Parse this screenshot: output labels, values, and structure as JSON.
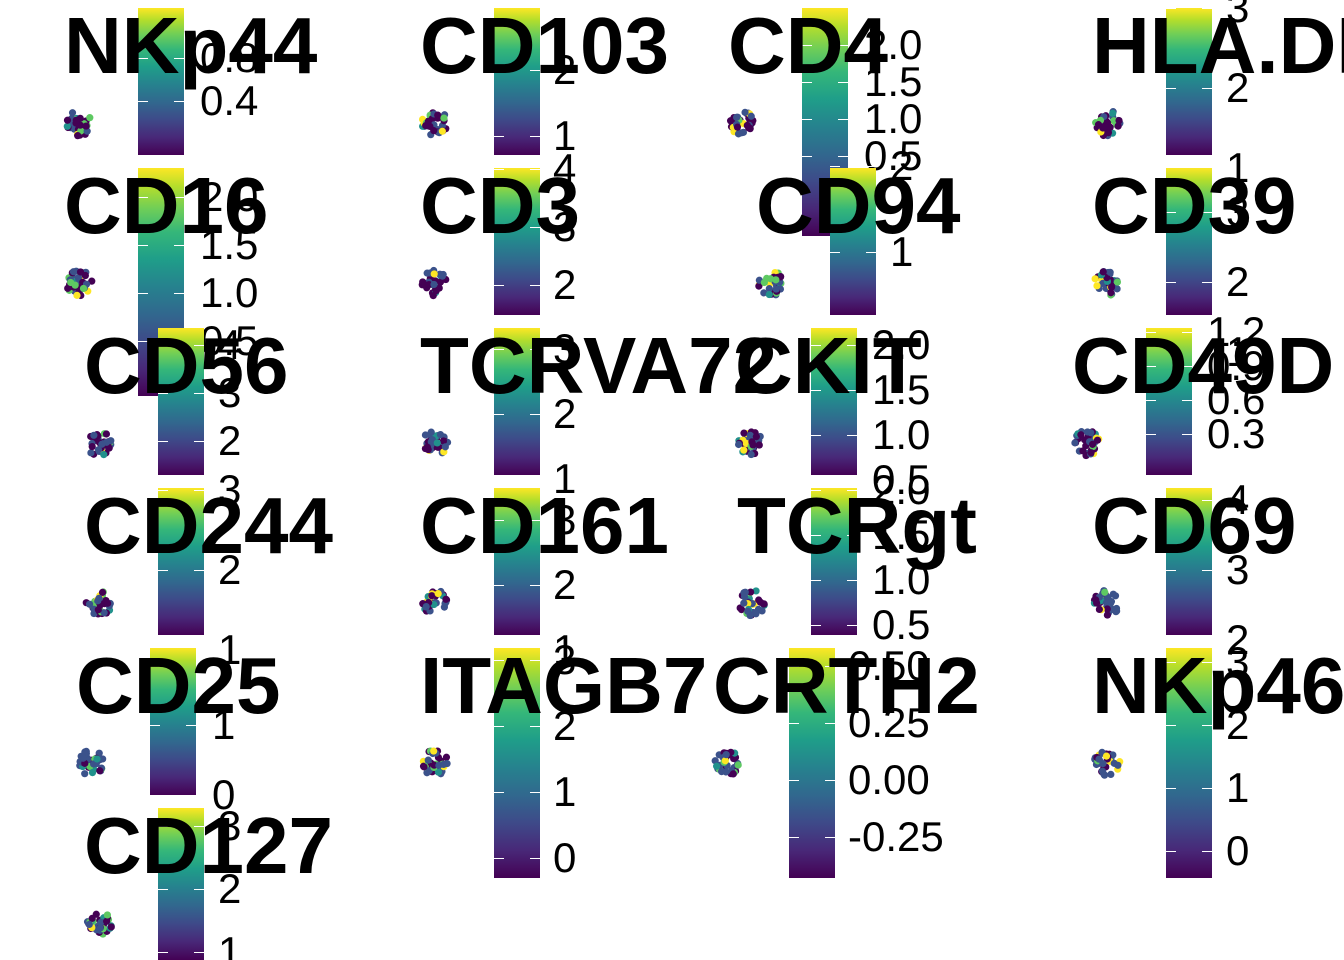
{
  "colors": {
    "viridis": [
      "#440154",
      "#3b528b",
      "#21918c",
      "#5ec962",
      "#fde725"
    ]
  },
  "chart_data": [
    {
      "type": "scatter",
      "title": "NKp44",
      "colorbar_ticks": [
        "0.8",
        "0.4"
      ]
    },
    {
      "type": "scatter",
      "title": "CD103",
      "colorbar_ticks": [
        "2",
        "1"
      ]
    },
    {
      "type": "scatter",
      "title": "CD4",
      "colorbar_ticks": [
        "2.0",
        "1.5",
        "1.0",
        "0.5"
      ]
    },
    {
      "type": "scatter",
      "title": "HLA.DR",
      "colorbar_ticks": [
        "3",
        "2",
        "1"
      ]
    },
    {
      "type": "scatter",
      "title": "CD16",
      "colorbar_ticks": [
        "2.0",
        "1.5",
        "1.0",
        "0.5"
      ]
    },
    {
      "type": "scatter",
      "title": "CD3",
      "colorbar_ticks": [
        "4",
        "3",
        "2"
      ]
    },
    {
      "type": "scatter",
      "title": "CD94",
      "colorbar_ticks": [
        "2",
        "1"
      ]
    },
    {
      "type": "scatter",
      "title": "CD39",
      "colorbar_ticks": [
        "3",
        "2",
        "1"
      ]
    },
    {
      "type": "scatter",
      "title": "CD56",
      "colorbar_ticks": [
        "4",
        "3",
        "2"
      ]
    },
    {
      "type": "scatter",
      "title": "TCRVA72",
      "colorbar_ticks": [
        "3",
        "2",
        "1"
      ]
    },
    {
      "type": "scatter",
      "title": "CKIT",
      "colorbar_ticks": [
        "2.0",
        "1.5",
        "1.0",
        "0.5"
      ]
    },
    {
      "type": "scatter",
      "title": "CD49D",
      "colorbar_ticks": [
        "1.2",
        "0.9",
        "0.6",
        "0.3"
      ]
    },
    {
      "type": "scatter",
      "title": "CD244",
      "colorbar_ticks": [
        "3",
        "2",
        "1"
      ]
    },
    {
      "type": "scatter",
      "title": "CD161",
      "colorbar_ticks": [
        "3",
        "2",
        "1"
      ]
    },
    {
      "type": "scatter",
      "title": "TCRgt",
      "colorbar_ticks": [
        "2.0",
        "1.5",
        "1.0",
        "0.5"
      ]
    },
    {
      "type": "scatter",
      "title": "CD69",
      "colorbar_ticks": [
        "4",
        "3",
        "2"
      ]
    },
    {
      "type": "scatter",
      "title": "CD25",
      "colorbar_ticks": [
        "1",
        "0"
      ]
    },
    {
      "type": "scatter",
      "title": "ITAGB7",
      "colorbar_ticks": [
        "3",
        "2",
        "1",
        "0"
      ]
    },
    {
      "type": "scatter",
      "title": "CRTH2",
      "colorbar_ticks": [
        "0.50",
        "0.25",
        "0.00",
        "-0.25"
      ]
    },
    {
      "type": "scatter",
      "title": "NKp46",
      "colorbar_ticks": [
        "3",
        "2",
        "1",
        "0"
      ]
    },
    {
      "type": "scatter",
      "title": "CD127",
      "colorbar_ticks": [
        "3",
        "2",
        "1"
      ]
    }
  ]
}
